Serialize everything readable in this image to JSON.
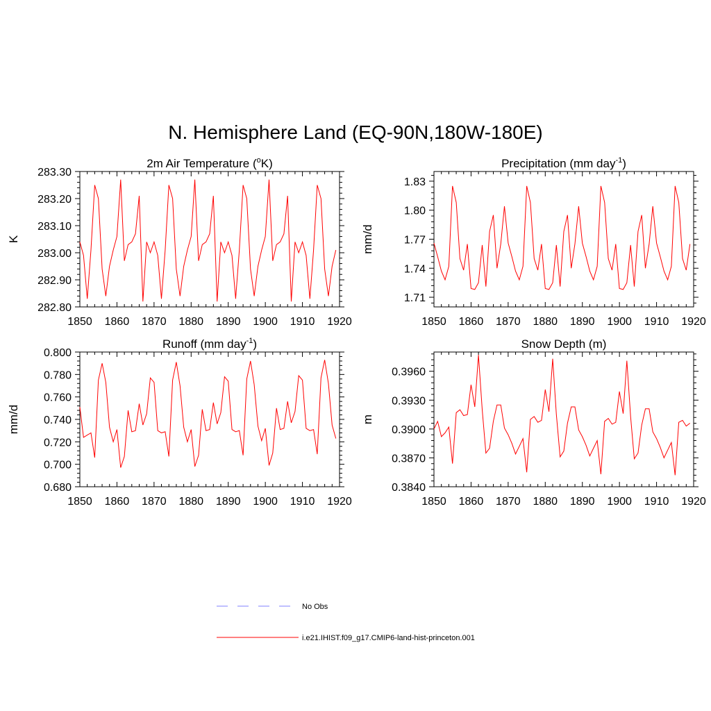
{
  "figure_title": "N. Hemisphere Land (EQ-90N,180W-180E)",
  "legend": [
    {
      "label": "No Obs",
      "color": "#9999ff",
      "style": "dashed"
    },
    {
      "label": "i.e21.IHIST.f09_g17.CMIP6-land-hist-princeton.001",
      "color": "#ff0000",
      "style": "solid"
    }
  ],
  "chart_data": [
    {
      "type": "line",
      "title": "2m Air Temperature (",
      "title_sup": "o",
      "title_end": "K)",
      "ylabel": "K",
      "xlim": [
        1850,
        1920
      ],
      "ylim": [
        282.8,
        283.3
      ],
      "xticks": [
        1850,
        1860,
        1870,
        1880,
        1890,
        1900,
        1910,
        1920
      ],
      "yticks": [
        "282.80",
        "282.90",
        "283.00",
        "283.10",
        "283.20",
        "283.30"
      ],
      "yticks_values": [
        282.8,
        282.9,
        283.0,
        283.1,
        283.2,
        283.3
      ],
      "line_color": "#ff0000",
      "x": [
        1850,
        1851,
        1852,
        1853,
        1854,
        1855,
        1856,
        1857,
        1858,
        1859,
        1860,
        1861,
        1862,
        1863,
        1864,
        1865,
        1866,
        1867,
        1868,
        1869,
        1870,
        1871,
        1872,
        1873,
        1874,
        1875,
        1876,
        1877,
        1878,
        1879,
        1880,
        1881,
        1882,
        1883,
        1884,
        1885,
        1886,
        1887,
        1888,
        1889,
        1890,
        1891,
        1892,
        1893,
        1894,
        1895,
        1896,
        1897,
        1898,
        1899,
        1900,
        1901,
        1902,
        1903,
        1904,
        1905,
        1906,
        1907,
        1908,
        1909,
        1910,
        1911,
        1912,
        1913,
        1914,
        1915,
        1916,
        1917,
        1918,
        1919
      ],
      "y": [
        283.04,
        282.99,
        282.83,
        283.01,
        283.25,
        283.2,
        282.94,
        282.84,
        282.95,
        283.01,
        283.06,
        283.27,
        282.97,
        283.03,
        283.04,
        283.07,
        283.21,
        282.82,
        283.04,
        283.0,
        283.04,
        282.99,
        282.83,
        283.01,
        283.25,
        283.2,
        282.94,
        282.84,
        282.95,
        283.01,
        283.06,
        283.27,
        282.97,
        283.03,
        283.04,
        283.07,
        283.21,
        282.82,
        283.04,
        283.0,
        283.04,
        282.99,
        282.83,
        283.01,
        283.25,
        283.2,
        282.94,
        282.84,
        282.95,
        283.01,
        283.06,
        283.27,
        282.97,
        283.03,
        283.04,
        283.07,
        283.21,
        282.82,
        283.04,
        283.0,
        283.04,
        282.99,
        282.83,
        283.01,
        283.25,
        283.2,
        282.94,
        282.84,
        282.95,
        283.01
      ]
    },
    {
      "type": "line",
      "title": "Precipitation (mm day",
      "title_sup": "-1",
      "title_end": ")",
      "ylabel": "mm/d",
      "xlim": [
        1850,
        1920
      ],
      "ylim": [
        1.7,
        1.84
      ],
      "xticks": [
        1850,
        1860,
        1870,
        1880,
        1890,
        1900,
        1910,
        1920
      ],
      "yticks": [
        "1.71",
        "1.74",
        "1.77",
        "1.80",
        "1.83"
      ],
      "yticks_values": [
        1.71,
        1.74,
        1.77,
        1.8,
        1.83
      ],
      "line_color": "#ff0000",
      "x": [
        1850,
        1851,
        1852,
        1853,
        1854,
        1855,
        1856,
        1857,
        1858,
        1859,
        1860,
        1861,
        1862,
        1863,
        1864,
        1865,
        1866,
        1867,
        1868,
        1869,
        1870,
        1871,
        1872,
        1873,
        1874,
        1875,
        1876,
        1877,
        1878,
        1879,
        1880,
        1881,
        1882,
        1883,
        1884,
        1885,
        1886,
        1887,
        1888,
        1889,
        1890,
        1891,
        1892,
        1893,
        1894,
        1895,
        1896,
        1897,
        1898,
        1899,
        1900,
        1901,
        1902,
        1903,
        1904,
        1905,
        1906,
        1907,
        1908,
        1909,
        1910,
        1911,
        1912,
        1913,
        1914,
        1915,
        1916,
        1917,
        1918,
        1919
      ],
      "y": [
        1.766,
        1.752,
        1.737,
        1.728,
        1.742,
        1.825,
        1.808,
        1.75,
        1.738,
        1.765,
        1.719,
        1.718,
        1.725,
        1.764,
        1.721,
        1.778,
        1.795,
        1.74,
        1.765,
        1.804,
        1.766,
        1.752,
        1.737,
        1.728,
        1.742,
        1.825,
        1.808,
        1.75,
        1.738,
        1.765,
        1.719,
        1.718,
        1.725,
        1.764,
        1.721,
        1.778,
        1.795,
        1.74,
        1.765,
        1.804,
        1.766,
        1.752,
        1.737,
        1.728,
        1.742,
        1.825,
        1.808,
        1.75,
        1.738,
        1.765,
        1.719,
        1.718,
        1.725,
        1.764,
        1.721,
        1.778,
        1.795,
        1.74,
        1.765,
        1.804,
        1.766,
        1.752,
        1.737,
        1.728,
        1.742,
        1.825,
        1.808,
        1.75,
        1.738,
        1.765
      ]
    },
    {
      "type": "line",
      "title": "Runoff (mm day",
      "title_sup": "-1",
      "title_end": ")",
      "ylabel": "mm/d",
      "xlim": [
        1850,
        1920
      ],
      "ylim": [
        0.68,
        0.8
      ],
      "xticks": [
        1850,
        1860,
        1870,
        1880,
        1890,
        1900,
        1910,
        1920
      ],
      "yticks": [
        "0.680",
        "0.700",
        "0.720",
        "0.740",
        "0.760",
        "0.780",
        "0.800"
      ],
      "yticks_values": [
        0.68,
        0.7,
        0.72,
        0.74,
        0.76,
        0.78,
        0.8
      ],
      "line_color": "#ff0000",
      "x": [
        1850,
        1851,
        1852,
        1853,
        1854,
        1855,
        1856,
        1857,
        1858,
        1859,
        1860,
        1861,
        1862,
        1863,
        1864,
        1865,
        1866,
        1867,
        1868,
        1869,
        1870,
        1871,
        1872,
        1873,
        1874,
        1875,
        1876,
        1877,
        1878,
        1879,
        1880,
        1881,
        1882,
        1883,
        1884,
        1885,
        1886,
        1887,
        1888,
        1889,
        1890,
        1891,
        1892,
        1893,
        1894,
        1895,
        1896,
        1897,
        1898,
        1899,
        1900,
        1901,
        1902,
        1903,
        1904,
        1905,
        1906,
        1907,
        1908,
        1909,
        1910,
        1911,
        1912,
        1913,
        1914,
        1915,
        1916,
        1917,
        1918,
        1919
      ],
      "y": [
        0.751,
        0.724,
        0.726,
        0.728,
        0.706,
        0.775,
        0.79,
        0.773,
        0.733,
        0.72,
        0.731,
        0.697,
        0.707,
        0.748,
        0.729,
        0.73,
        0.754,
        0.735,
        0.745,
        0.777,
        0.773,
        0.73,
        0.728,
        0.729,
        0.707,
        0.775,
        0.791,
        0.77,
        0.733,
        0.72,
        0.731,
        0.698,
        0.708,
        0.749,
        0.73,
        0.731,
        0.755,
        0.736,
        0.746,
        0.778,
        0.774,
        0.731,
        0.729,
        0.73,
        0.708,
        0.776,
        0.792,
        0.771,
        0.734,
        0.721,
        0.732,
        0.699,
        0.71,
        0.75,
        0.731,
        0.732,
        0.756,
        0.737,
        0.747,
        0.779,
        0.775,
        0.732,
        0.73,
        0.731,
        0.709,
        0.777,
        0.793,
        0.772,
        0.735,
        0.723
      ]
    },
    {
      "type": "line",
      "title": "Snow Depth (m)",
      "title_sup": "",
      "title_end": "",
      "ylabel": "m",
      "xlim": [
        1850,
        1920
      ],
      "ylim": [
        0.384,
        0.398
      ],
      "xticks": [
        1850,
        1860,
        1870,
        1880,
        1890,
        1900,
        1910,
        1920
      ],
      "yticks": [
        "0.3840",
        "0.3870",
        "0.3900",
        "0.3930",
        "0.3960"
      ],
      "yticks_values": [
        0.384,
        0.387,
        0.39,
        0.393,
        0.396
      ],
      "line_color": "#ff0000",
      "x": [
        1850,
        1851,
        1852,
        1853,
        1854,
        1855,
        1856,
        1857,
        1858,
        1859,
        1860,
        1861,
        1862,
        1863,
        1864,
        1865,
        1866,
        1867,
        1868,
        1869,
        1870,
        1871,
        1872,
        1873,
        1874,
        1875,
        1876,
        1877,
        1878,
        1879,
        1880,
        1881,
        1882,
        1883,
        1884,
        1885,
        1886,
        1887,
        1888,
        1889,
        1890,
        1891,
        1892,
        1893,
        1894,
        1895,
        1896,
        1897,
        1898,
        1899,
        1900,
        1901,
        1902,
        1903,
        1904,
        1905,
        1906,
        1907,
        1908,
        1909,
        1910,
        1911,
        1912,
        1913,
        1914,
        1915,
        1916,
        1917,
        1918,
        1919
      ],
      "y": [
        0.39,
        0.3908,
        0.3892,
        0.3896,
        0.3902,
        0.3864,
        0.3917,
        0.392,
        0.3914,
        0.3915,
        0.3946,
        0.3923,
        0.3977,
        0.392,
        0.3875,
        0.388,
        0.3908,
        0.3925,
        0.3925,
        0.3901,
        0.3894,
        0.3885,
        0.3874,
        0.3882,
        0.389,
        0.3855,
        0.391,
        0.3913,
        0.3907,
        0.3909,
        0.3941,
        0.3918,
        0.3973,
        0.3915,
        0.3871,
        0.3877,
        0.3906,
        0.3923,
        0.3923,
        0.3899,
        0.3892,
        0.3883,
        0.3872,
        0.388,
        0.3888,
        0.3853,
        0.3908,
        0.3911,
        0.3905,
        0.3907,
        0.3939,
        0.3916,
        0.3971,
        0.3913,
        0.3869,
        0.3875,
        0.3904,
        0.3921,
        0.3921,
        0.3897,
        0.389,
        0.3881,
        0.387,
        0.3878,
        0.3886,
        0.3852,
        0.3907,
        0.3909,
        0.3903,
        0.3906
      ]
    }
  ]
}
